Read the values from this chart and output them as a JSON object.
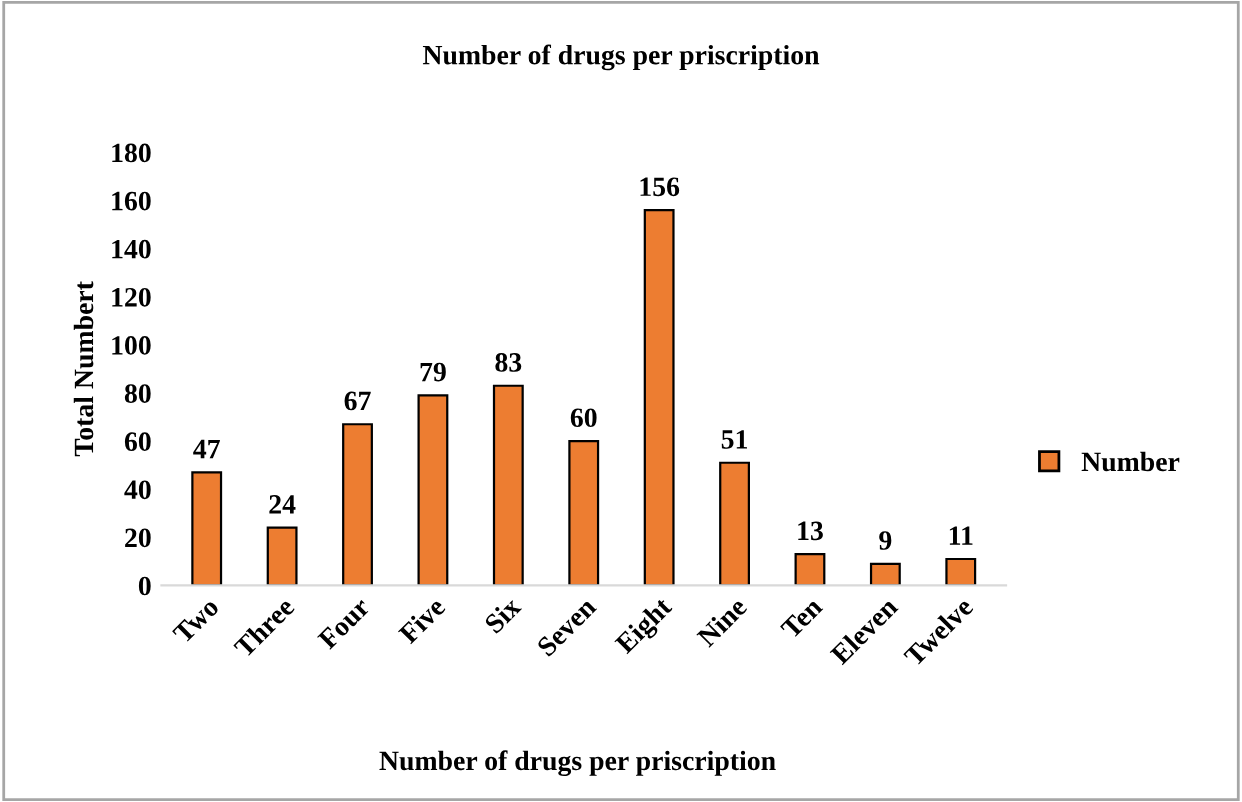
{
  "chart_data": {
    "type": "bar",
    "title": "Number of drugs per priscription",
    "xlabel": "Number of drugs per priscription",
    "ylabel": "Total Numbert",
    "categories": [
      "Two",
      "Three",
      "Four",
      "Five",
      "Six",
      "Seven",
      "Eight",
      "Nine",
      "Ten",
      "Eleven",
      "Twelve"
    ],
    "series": [
      {
        "name": "Number",
        "color": "#ed7d31",
        "values": [
          47,
          24,
          67,
          79,
          83,
          60,
          156,
          51,
          13,
          9,
          11
        ]
      }
    ],
    "ylim": [
      0,
      180
    ],
    "yticks": [
      0,
      20,
      40,
      60,
      80,
      100,
      120,
      140,
      160,
      180
    ],
    "grid": false,
    "legend": "right",
    "data_labels": true
  }
}
